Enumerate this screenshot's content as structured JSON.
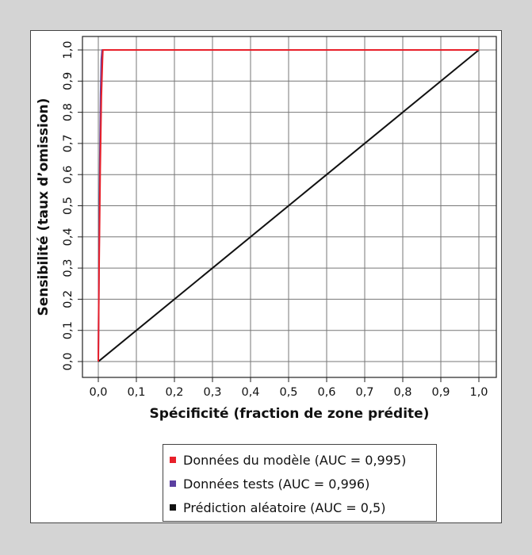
{
  "chart_data": {
    "type": "line",
    "xlabel": "Spécificité (fraction de zone prédite)",
    "ylabel": "Sensibilité (taux d’omission)",
    "xlim": [
      0,
      1
    ],
    "ylim": [
      0,
      1
    ],
    "x_ticks": [
      "0,0",
      "0,1",
      "0,2",
      "0,3",
      "0,4",
      "0,5",
      "0,6",
      "0,7",
      "0,8",
      "0,9",
      "1,0"
    ],
    "y_ticks": [
      "0,0",
      "0,1",
      "0,2",
      "0,3",
      "0,4",
      "0,5",
      "0,6",
      "0,7",
      "0,8",
      "0,9",
      "1,0"
    ],
    "grid": true,
    "legend_position": "bottom",
    "series": [
      {
        "name": "Données du modèle (AUC = 0,995)",
        "color": "#e8202a",
        "points": [
          [
            0,
            0
          ],
          [
            0.002,
            0.3
          ],
          [
            0.005,
            0.62
          ],
          [
            0.008,
            0.85
          ],
          [
            0.011,
            0.97
          ],
          [
            0.012,
            1.0
          ],
          [
            1.0,
            1.0
          ]
        ]
      },
      {
        "name": "Données tests (AUC = 0,996)",
        "color": "#5b3fa0",
        "points": [
          [
            0,
            0
          ],
          [
            0.002,
            0.35
          ],
          [
            0.004,
            0.65
          ],
          [
            0.006,
            0.86
          ],
          [
            0.008,
            0.97
          ],
          [
            0.01,
            1.0
          ],
          [
            0.012,
            1.0
          ]
        ]
      },
      {
        "name": "Prédiction aléatoire (AUC = 0,5)",
        "color": "#111111",
        "points": [
          [
            0,
            0
          ],
          [
            1,
            1
          ]
        ]
      }
    ]
  }
}
